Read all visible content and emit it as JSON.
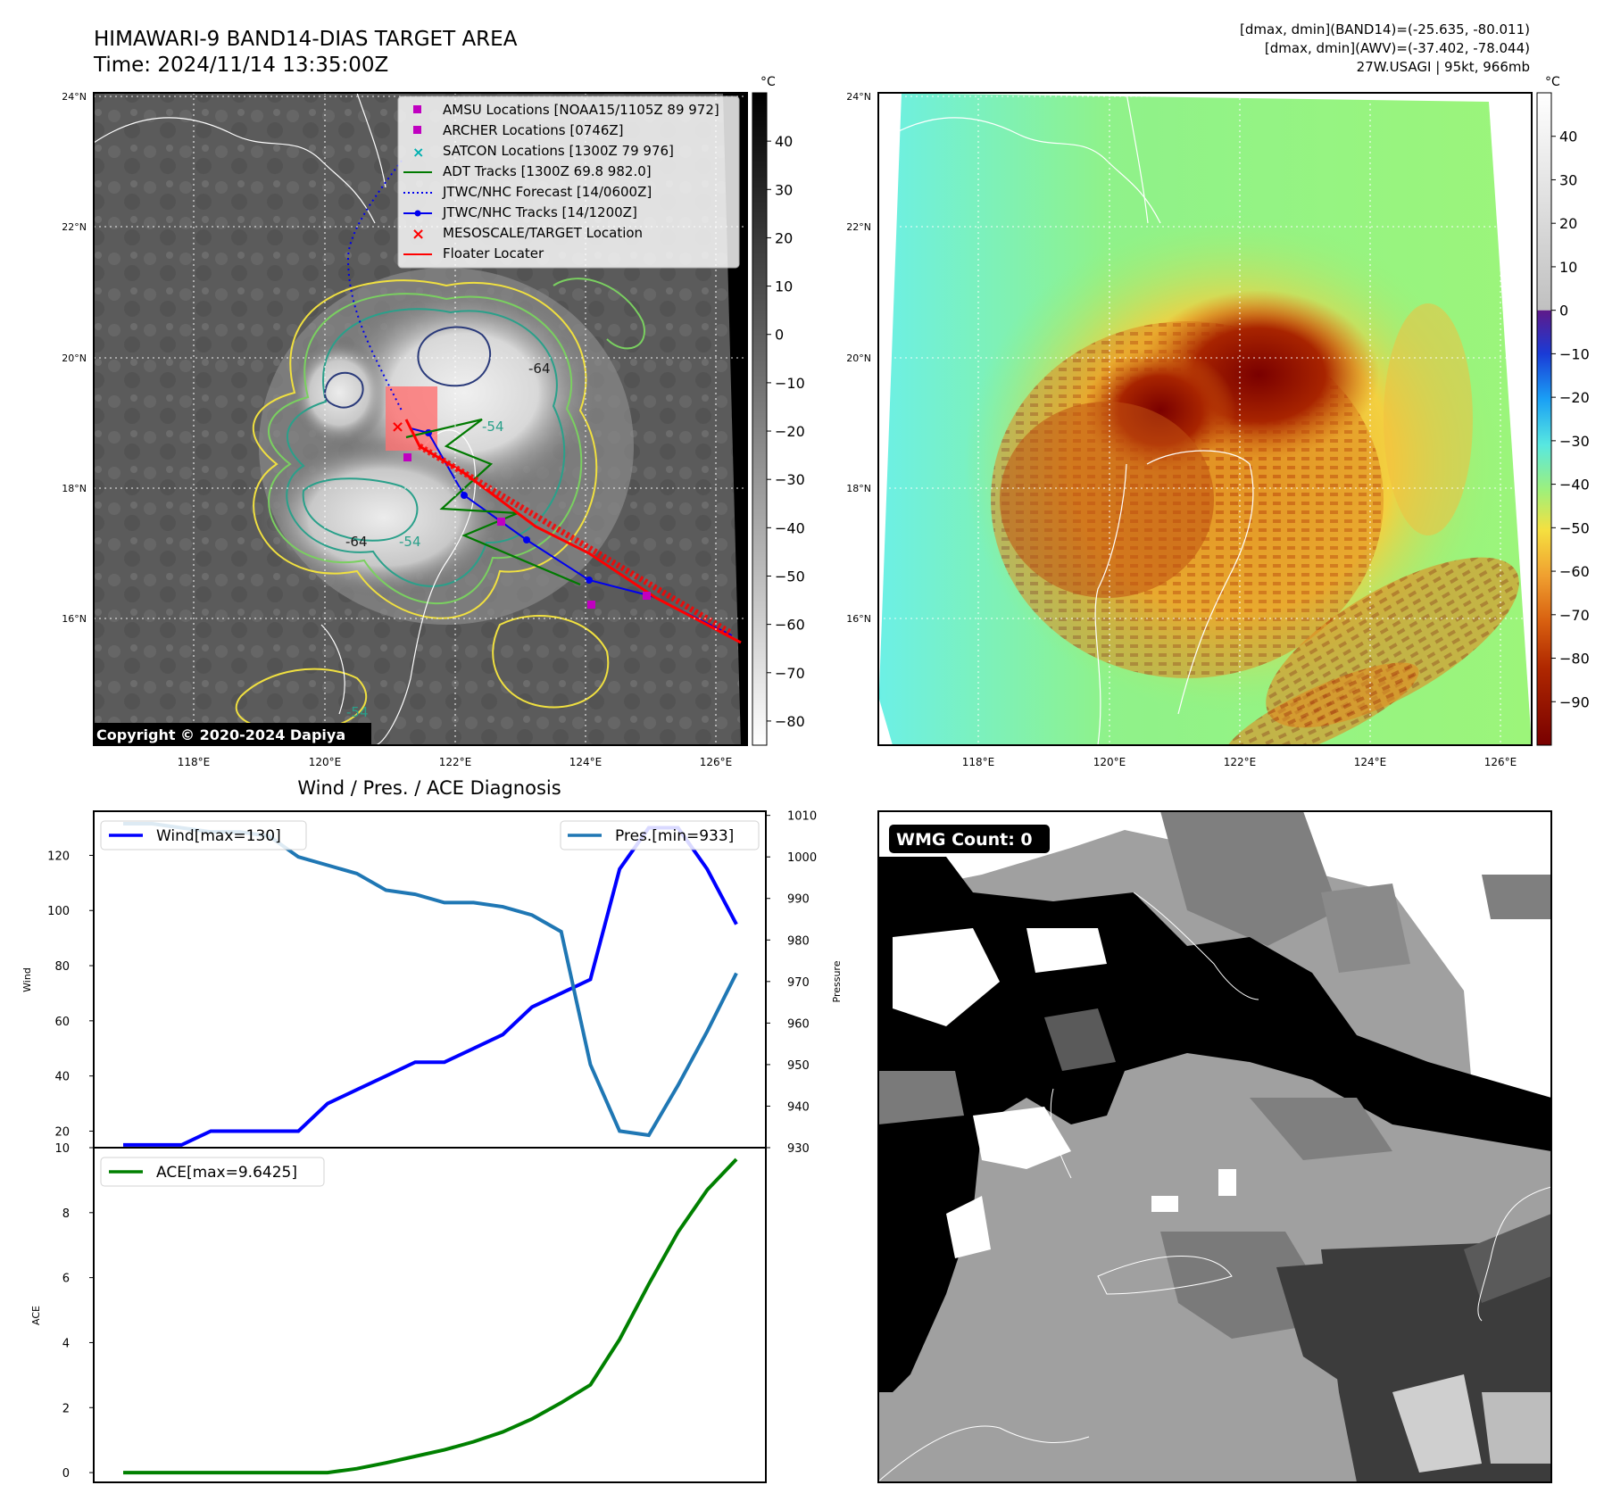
{
  "header": {
    "title": "HIMAWARI-9 BAND14-DIAS TARGET AREA",
    "time": "Time: 2024/11/14 13:35:00Z",
    "info_line1": "[dmax, dmin](BAND14)=(-25.635, -80.011)",
    "info_line2": "[dmax, dmin](AWV)=(-37.402, -78.044)",
    "info_line3": "27W.USAGI | 95kt, 966mb"
  },
  "map_axes": {
    "lat_labels": [
      "24°N",
      "22°N",
      "20°N",
      "18°N",
      "16°N"
    ],
    "lon_labels": [
      "118°E",
      "120°E",
      "122°E",
      "124°E",
      "126°E"
    ],
    "unit": "°C"
  },
  "ir_panel": {
    "colorbar_ticks": [
      "40",
      "30",
      "20",
      "10",
      "0",
      "−10",
      "−20",
      "−30",
      "−40",
      "−50",
      "−60",
      "−70",
      "−80"
    ],
    "colorbar_range": [
      -85,
      50
    ],
    "copyright": "Copyright © 2020-2024 Dapiya",
    "contour_labels": [
      "-64",
      "-54",
      "-64",
      "-54",
      "-54"
    ],
    "legend": [
      {
        "label": "AMSU Locations [NOAA15/1105Z 89 972]",
        "color": "#c000c0",
        "marker": "square"
      },
      {
        "label": "ARCHER Locations [0746Z]",
        "color": "#c000c0",
        "marker": "square"
      },
      {
        "label": "SATCON Locations [1300Z 79 976]",
        "color": "#00b0b0",
        "marker": "x"
      },
      {
        "label": "ADT Tracks [1300Z 69.8 982.0]",
        "color": "#007a00",
        "marker": "line"
      },
      {
        "label": "JTWC/NHC Forecast [14/0600Z]",
        "color": "#0000ee",
        "marker": "dotted"
      },
      {
        "label": "JTWC/NHC Tracks [14/1200Z]",
        "color": "#0000ee",
        "marker": "line-dot"
      },
      {
        "label": "MESOSCALE/TARGET Location",
        "color": "#ff0000",
        "marker": "x"
      },
      {
        "label": "Floater Locater",
        "color": "#ff0000",
        "marker": "line"
      }
    ]
  },
  "awv_panel": {
    "colorbar_ticks": [
      "40",
      "30",
      "20",
      "10",
      "0",
      "−10",
      "−20",
      "−30",
      "−40",
      "−50",
      "−60",
      "−70",
      "−80",
      "−90"
    ],
    "colorbar_range": [
      -100,
      50
    ]
  },
  "wmg_panel": {
    "badge": "WMG Count: 0"
  },
  "chart_data": [
    {
      "type": "line",
      "title": "Wind / Pres. / ACE Diagnosis",
      "ylabel": "Wind",
      "y2label": "Pressure",
      "ylim": [
        14,
        136
      ],
      "y2lim": [
        930,
        1011
      ],
      "yticks": [
        20,
        40,
        60,
        80,
        100,
        120
      ],
      "y2ticks": [
        930,
        940,
        950,
        960,
        970,
        980,
        990,
        1000,
        1010
      ],
      "series": [
        {
          "name": "Wind[max=130]",
          "color": "#0000ff",
          "values": [
            15,
            15,
            15,
            20,
            20,
            20,
            20,
            30,
            35,
            40,
            45,
            45,
            50,
            55,
            65,
            70,
            75,
            115,
            130,
            130,
            115,
            95
          ]
        },
        {
          "name": "Pres.[min=933]",
          "color": "#1f77b4",
          "values": [
            1008,
            1008,
            1007,
            1006,
            1006,
            1005,
            1000,
            998,
            996,
            992,
            991,
            989,
            989,
            988,
            986,
            982,
            950,
            934,
            933,
            945,
            958,
            972
          ]
        }
      ]
    },
    {
      "type": "line",
      "ylabel": "ACE",
      "ylim": [
        -0.3,
        10
      ],
      "yticks": [
        0,
        2,
        4,
        6,
        8,
        10
      ],
      "series": [
        {
          "name": "ACE[max=9.6425]",
          "color": "#008000",
          "values": [
            0,
            0,
            0,
            0,
            0,
            0,
            0,
            0,
            0.12,
            0.3,
            0.5,
            0.7,
            0.95,
            1.25,
            1.65,
            2.15,
            2.7,
            4.1,
            5.8,
            7.4,
            8.7,
            9.6425
          ]
        }
      ]
    }
  ]
}
